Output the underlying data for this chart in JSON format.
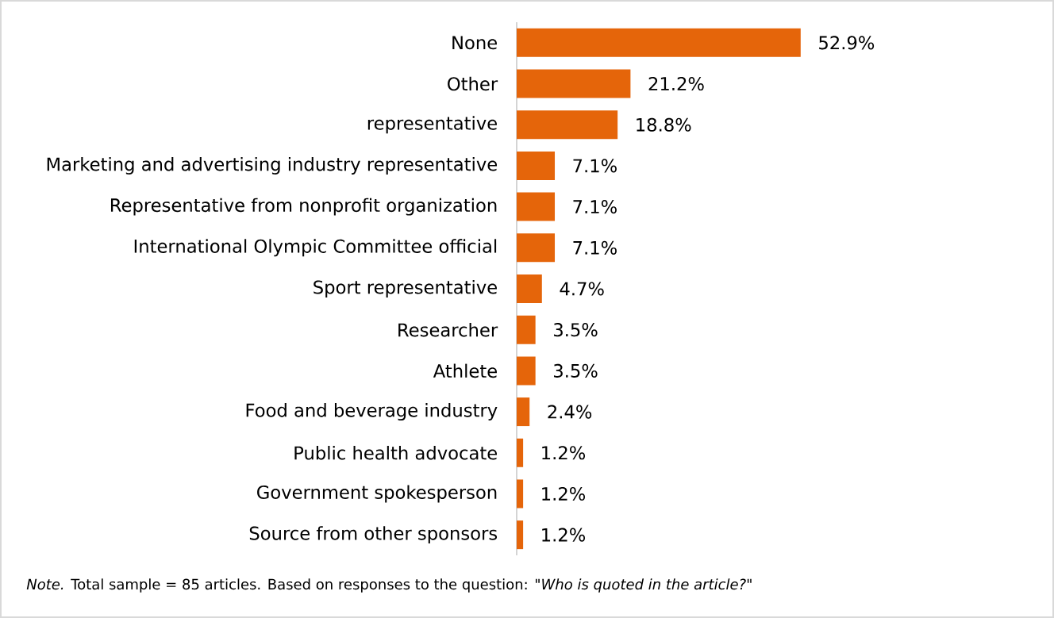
{
  "chart_data": {
    "type": "bar",
    "orientation": "horizontal",
    "categories": [
      "None",
      "Other",
      "representative",
      "Marketing and advertising industry representative",
      "Representative from nonprofit organization",
      "International Olympic Committee official",
      "Sport representative",
      "Researcher",
      "Athlete",
      "Food and beverage industry",
      "Public health advocate",
      "Government spokesperson",
      "Source from other sponsors"
    ],
    "values": [
      52.9,
      21.2,
      18.8,
      7.1,
      7.1,
      7.1,
      4.7,
      3.5,
      3.5,
      2.4,
      1.2,
      1.2,
      1.2
    ],
    "value_labels": [
      "52.9%",
      "21.2%",
      "18.8%",
      "7.1%",
      "7.1%",
      "7.1%",
      "4.7%",
      "3.5%",
      "3.5%",
      "2.4%",
      "1.2%",
      "1.2%",
      "1.2%"
    ],
    "color": "#e5650a",
    "annotations": [
      "*Note.* Total sample = 85 articles. Based on responses to the question: *\"Who is quoted in the article?\"*"
    ]
  }
}
